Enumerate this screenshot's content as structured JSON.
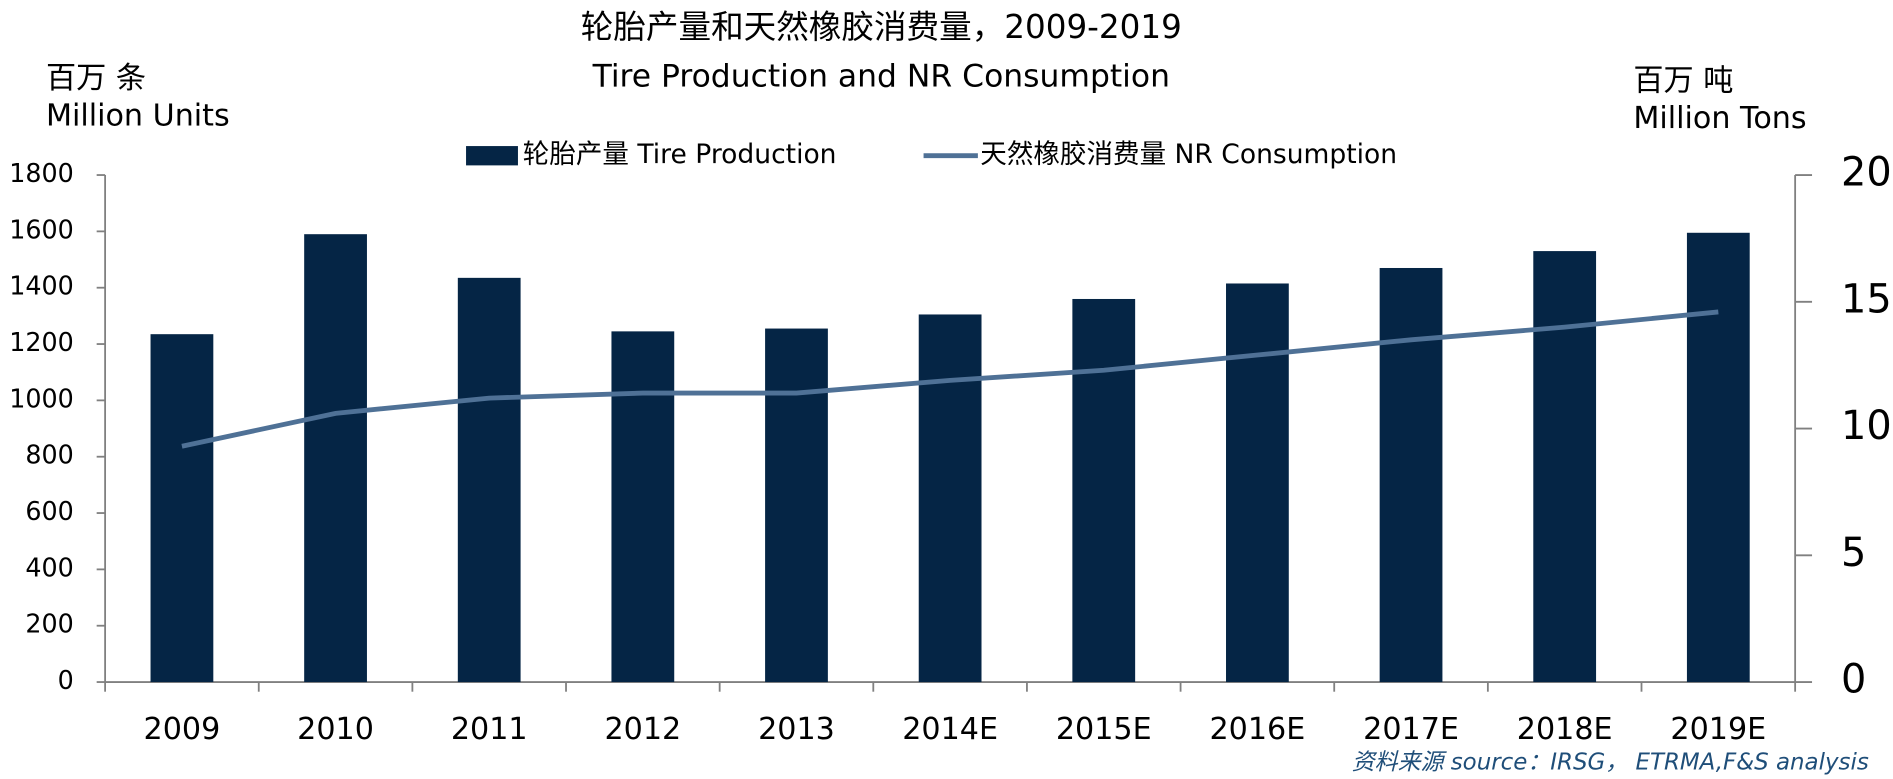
{
  "chart_data": {
    "type": "bar_line",
    "title": "轮胎产量和天然橡胶消费量，2009-2019",
    "subtitle": "Tire  Production and NR Consumption",
    "y_label": [
      "百万 条",
      "Million Units"
    ],
    "y2_label": [
      "百万 吨",
      "Million Tons"
    ],
    "source": "资料来源 source：IRSG， ETRMA,F&S analysis",
    "categories": [
      "2009",
      "2010",
      "2011",
      "2012",
      "2013",
      "2014E",
      "2015E",
      "2016E",
      "2017E",
      "2018E",
      "2019E"
    ],
    "series": [
      {
        "name": "轮胎产量 Tire Production",
        "type": "bar",
        "color": "#052545",
        "values": [
          1235,
          1590,
          1435,
          1245,
          1255,
          1305,
          1360,
          1415,
          1470,
          1530,
          1595
        ]
      },
      {
        "name": "天然橡胶消费量 NR Consumption",
        "type": "line",
        "axis": "y2",
        "color": "#4f7196",
        "values": [
          9.3,
          10.6,
          11.2,
          11.4,
          11.4,
          11.9,
          12.3,
          12.9,
          13.5,
          14.0,
          14.6
        ]
      }
    ],
    "ylim": [
      0,
      1800
    ],
    "yticks": [
      0,
      200,
      400,
      600,
      800,
      1000,
      1200,
      1400,
      1600,
      1800
    ],
    "y2lim": [
      0,
      20
    ],
    "y2ticks": [
      0,
      5,
      10,
      15,
      20
    ],
    "grid": false,
    "legend": "top"
  }
}
